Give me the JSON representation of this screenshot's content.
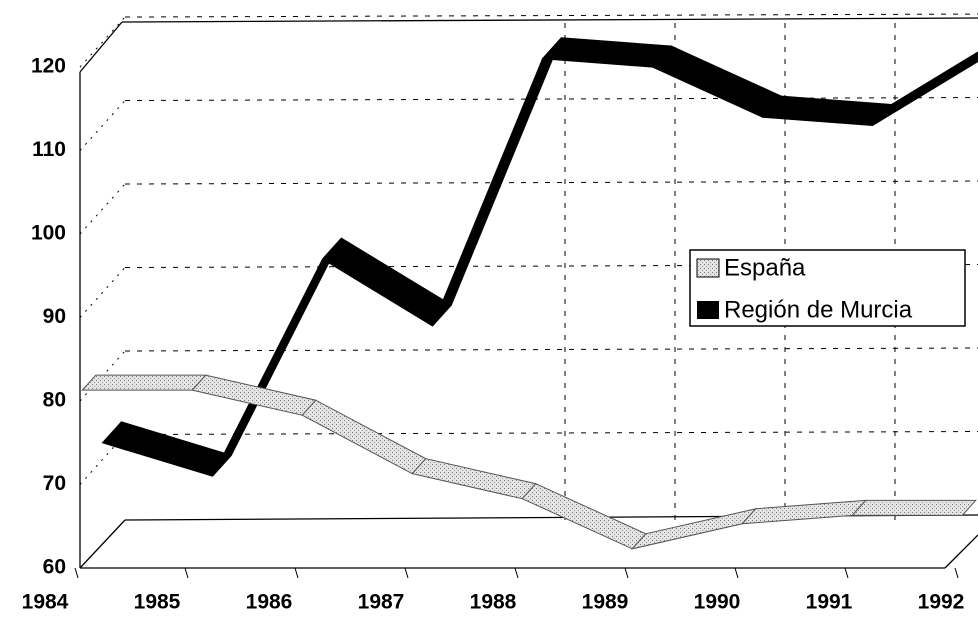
{
  "chart_data": {
    "type": "line",
    "categories": [
      "1984",
      "1985",
      "1986",
      "1987",
      "1988",
      "1989",
      "1990",
      "1991",
      "1992"
    ],
    "series": [
      {
        "name": "España",
        "color": "#cfcfcf",
        "values": [
          81,
          81,
          78,
          71,
          68,
          62,
          65,
          66,
          66
        ]
      },
      {
        "name": "Región de Murcia",
        "color": "#000000",
        "values": [
          72,
          68,
          94,
          86,
          118,
          117,
          111,
          110,
          118
        ]
      }
    ],
    "ylim": [
      60,
      123
    ],
    "yticks": [
      60,
      70,
      80,
      90,
      100,
      110,
      120
    ],
    "grid": true,
    "legend": "right"
  }
}
